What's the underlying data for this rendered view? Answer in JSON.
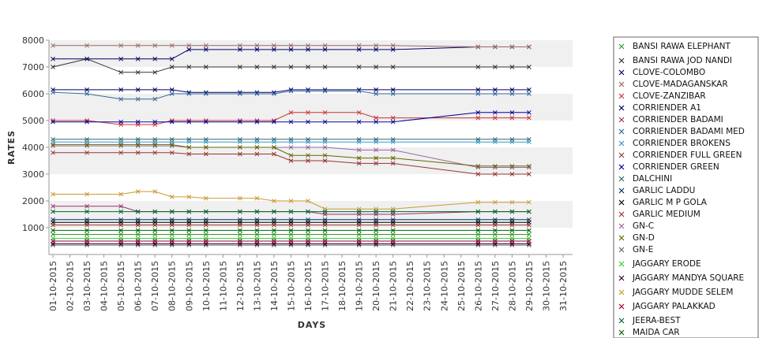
{
  "chart_data": {
    "type": "line",
    "xlabel": "DAYS",
    "ylabel": "RATES",
    "ylim": [
      0,
      8000
    ],
    "yticks": [
      1000,
      2000,
      3000,
      4000,
      5000,
      6000,
      7000,
      8000
    ],
    "grid": "alternating horizontal bands",
    "legend_position": "right",
    "categories": [
      "01-10-2015",
      "02-10-2015",
      "03-10-2015",
      "04-10-2015",
      "05-10-2015",
      "06-10-2015",
      "07-10-2015",
      "08-10-2015",
      "09-10-2015",
      "10-10-2015",
      "11-10-2015",
      "12-10-2015",
      "13-10-2015",
      "14-10-2015",
      "15-10-2015",
      "16-10-2015",
      "17-10-2015",
      "18-10-2015",
      "19-10-2015",
      "20-10-2015",
      "21-10-2015",
      "22-10-2015",
      "23-10-2015",
      "24-10-2015",
      "25-10-2015",
      "26-10-2015",
      "27-10-2015",
      "28-10-2015",
      "29-10-2015",
      "30-10-2015",
      "31-10-2015"
    ],
    "series": [
      {
        "name": "BANSI RAWA ELEPHANT",
        "color": "#339933",
        "values": [
          750,
          null,
          750,
          null,
          750,
          750,
          750,
          750,
          750,
          750,
          null,
          750,
          750,
          750,
          750,
          750,
          750,
          null,
          750,
          750,
          750,
          null,
          null,
          null,
          null,
          750,
          750,
          750,
          750,
          null,
          null
        ]
      },
      {
        "name": "BANSI RAWA JOD NANDI",
        "color": "#333333",
        "values": [
          7000,
          null,
          7300,
          null,
          6800,
          6800,
          6800,
          7000,
          7000,
          7000,
          null,
          7000,
          7000,
          7000,
          7000,
          7000,
          7000,
          null,
          7000,
          7000,
          7000,
          null,
          null,
          null,
          null,
          7000,
          7000,
          7000,
          7000,
          null,
          null
        ]
      },
      {
        "name": "CLOVE-COLOMBO",
        "color": "#000066",
        "values": [
          7300,
          null,
          7300,
          null,
          7300,
          7300,
          7300,
          7300,
          7650,
          7650,
          null,
          7650,
          7650,
          7650,
          7650,
          7650,
          7650,
          null,
          7650,
          7650,
          7650,
          null,
          null,
          null,
          null,
          7750,
          7750,
          7750,
          7750,
          null,
          null
        ]
      },
      {
        "name": "CLOVE-MADAGANSKAR",
        "color": "#996666",
        "values": [
          7800,
          null,
          7800,
          null,
          7800,
          7800,
          7800,
          7800,
          7800,
          7800,
          null,
          7800,
          7800,
          7800,
          7800,
          7800,
          7800,
          null,
          7800,
          7800,
          7800,
          null,
          null,
          null,
          null,
          7750,
          7750,
          7750,
          7750,
          null,
          null
        ]
      },
      {
        "name": "CLOVE-ZANZIBAR",
        "color": "#cc3333",
        "values": [
          5000,
          null,
          5000,
          null,
          4850,
          4850,
          4850,
          5000,
          5000,
          5000,
          null,
          5000,
          5000,
          5000,
          5300,
          5300,
          5300,
          null,
          5300,
          5100,
          5100,
          null,
          null,
          null,
          null,
          5100,
          5100,
          5100,
          5100,
          null,
          null
        ]
      },
      {
        "name": "CORRIENDER A1",
        "color": "#000066",
        "values": [
          6150,
          null,
          6150,
          null,
          6150,
          6150,
          6150,
          6150,
          6050,
          6050,
          null,
          6050,
          6050,
          6050,
          6150,
          6150,
          6150,
          null,
          6150,
          6150,
          6150,
          null,
          null,
          null,
          null,
          6150,
          6150,
          6150,
          6150,
          null,
          null
        ]
      },
      {
        "name": "CORRIENDER BADAMI",
        "color": "#993366",
        "values": [
          1800,
          null,
          1800,
          null,
          1800,
          1600,
          1600,
          1600,
          1600,
          1600,
          null,
          1600,
          1600,
          1600,
          1600,
          1600,
          1500,
          null,
          1500,
          1500,
          1500,
          null,
          null,
          null,
          null,
          1600,
          1600,
          1600,
          1600,
          null,
          null
        ]
      },
      {
        "name": "CORRIENDER BADAMI MED",
        "color": "#336699",
        "values": [
          6050,
          null,
          6000,
          null,
          5800,
          5800,
          5800,
          6000,
          6000,
          6000,
          null,
          6000,
          6000,
          6000,
          6100,
          6100,
          6100,
          null,
          6100,
          6000,
          6000,
          null,
          null,
          null,
          null,
          6000,
          6000,
          6000,
          6000,
          null,
          null
        ]
      },
      {
        "name": "CORRIENDER BROKENS",
        "color": "#3399cc",
        "values": [
          4200,
          null,
          4200,
          null,
          4200,
          4200,
          4200,
          4200,
          4200,
          4200,
          null,
          4200,
          4200,
          4200,
          4200,
          4200,
          4200,
          null,
          4200,
          4200,
          4200,
          null,
          null,
          null,
          null,
          4200,
          4200,
          4200,
          4200,
          null,
          null
        ]
      },
      {
        "name": "CORRIENDER FULL GREEN",
        "color": "#993333",
        "values": [
          3800,
          null,
          3800,
          null,
          3800,
          3800,
          3800,
          3800,
          3750,
          3750,
          null,
          3750,
          3750,
          3750,
          3500,
          3500,
          3500,
          null,
          3400,
          3400,
          3400,
          null,
          null,
          null,
          null,
          3000,
          3000,
          3000,
          3000,
          null,
          null
        ]
      },
      {
        "name": "CORRIENDER GREEN",
        "color": "#000099",
        "values": [
          4950,
          null,
          4950,
          null,
          4950,
          4950,
          4950,
          4950,
          4950,
          4950,
          null,
          4950,
          4950,
          4950,
          4950,
          4950,
          4950,
          null,
          4950,
          4950,
          4950,
          null,
          null,
          null,
          null,
          5300,
          5300,
          5300,
          5300,
          null,
          null
        ]
      },
      {
        "name": "DALCHINI",
        "color": "#336666",
        "values": [
          4300,
          null,
          4300,
          null,
          4300,
          4300,
          4300,
          4300,
          4300,
          4300,
          null,
          4300,
          4300,
          4300,
          4300,
          4300,
          4300,
          null,
          4300,
          4300,
          4300,
          null,
          null,
          null,
          null,
          4300,
          4300,
          4300,
          4300,
          null,
          null
        ]
      },
      {
        "name": "GARLIC LADDU",
        "color": "#003366",
        "values": [
          1300,
          null,
          1300,
          null,
          1300,
          1300,
          1300,
          1300,
          1300,
          1300,
          null,
          1300,
          1300,
          1300,
          1300,
          1300,
          1300,
          null,
          1300,
          1300,
          1300,
          null,
          null,
          null,
          null,
          1300,
          1300,
          1300,
          1300,
          null,
          null
        ]
      },
      {
        "name": "GARLIC M P GOLA",
        "color": "#000000",
        "values": [
          1200,
          null,
          1200,
          null,
          1200,
          1200,
          1200,
          1200,
          1200,
          1200,
          null,
          1200,
          1200,
          1200,
          1200,
          1200,
          1200,
          null,
          1200,
          1200,
          1200,
          null,
          null,
          null,
          null,
          1200,
          1200,
          1200,
          1200,
          null,
          null
        ]
      },
      {
        "name": "GARLIC MEDIUM",
        "color": "#993333",
        "values": [
          1100,
          null,
          1100,
          null,
          1100,
          1100,
          1100,
          1100,
          1100,
          1100,
          null,
          1100,
          1100,
          1100,
          1100,
          1100,
          1100,
          null,
          1100,
          1100,
          1100,
          null,
          null,
          null,
          null,
          1100,
          1100,
          1100,
          1100,
          null,
          null
        ]
      },
      {
        "name": "GN-C",
        "color": "#996699",
        "values": [
          4050,
          null,
          4050,
          null,
          4050,
          4050,
          4050,
          4050,
          4000,
          4000,
          null,
          4000,
          4000,
          4000,
          4000,
          4000,
          4000,
          null,
          3900,
          3900,
          3900,
          null,
          null,
          null,
          null,
          3250,
          3250,
          3250,
          3250,
          null,
          null
        ]
      },
      {
        "name": "GN-D",
        "color": "#666600",
        "values": [
          4100,
          null,
          4100,
          null,
          4100,
          4100,
          4100,
          4100,
          4000,
          4000,
          null,
          4000,
          4000,
          4000,
          3700,
          3700,
          3700,
          null,
          3600,
          3600,
          3600,
          null,
          null,
          null,
          null,
          3300,
          3300,
          3300,
          3300,
          null,
          null
        ]
      },
      {
        "name": "GN-E",
        "color": "#666666",
        "values": [
          350,
          null,
          350,
          null,
          350,
          350,
          350,
          350,
          350,
          350,
          null,
          350,
          350,
          350,
          350,
          350,
          350,
          null,
          350,
          350,
          350,
          null,
          null,
          null,
          null,
          350,
          350,
          350,
          350,
          null,
          null
        ]
      },
      {
        "name": "JAGGARY ERODE",
        "color": "#33cc33",
        "values": [
          600,
          null,
          600,
          null,
          600,
          600,
          600,
          600,
          600,
          600,
          null,
          600,
          600,
          600,
          600,
          600,
          600,
          null,
          600,
          600,
          600,
          null,
          null,
          null,
          null,
          600,
          600,
          600,
          600,
          null,
          null
        ]
      },
      {
        "name": "JAGGARY MANDYA SQUARE",
        "color": "#330033",
        "values": [
          400,
          null,
          400,
          null,
          400,
          400,
          400,
          400,
          400,
          400,
          null,
          400,
          400,
          400,
          400,
          400,
          400,
          null,
          400,
          400,
          400,
          null,
          null,
          null,
          null,
          400,
          400,
          400,
          400,
          null,
          null
        ]
      },
      {
        "name": "JAGGARY MUDDE SELEM",
        "color": "#cc9933",
        "values": [
          2250,
          null,
          2250,
          null,
          2250,
          2350,
          2350,
          2150,
          2150,
          2100,
          null,
          2100,
          2100,
          2000,
          2000,
          2000,
          1700,
          null,
          1700,
          1700,
          1700,
          null,
          null,
          null,
          null,
          1950,
          1950,
          1950,
          1950,
          null,
          null
        ]
      },
      {
        "name": "JAGGARY PALAKKAD",
        "color": "#990033",
        "values": [
          500,
          null,
          500,
          null,
          500,
          500,
          500,
          500,
          500,
          500,
          null,
          500,
          500,
          500,
          500,
          500,
          500,
          null,
          500,
          500,
          500,
          null,
          null,
          null,
          null,
          500,
          500,
          500,
          500,
          null,
          null
        ]
      },
      {
        "name": "JEERA-BEST",
        "color": "#006633",
        "values": [
          1600,
          null,
          1600,
          null,
          1600,
          1600,
          1600,
          1600,
          1600,
          1600,
          null,
          1600,
          1600,
          1600,
          1600,
          1600,
          1600,
          null,
          1600,
          1600,
          1600,
          null,
          null,
          null,
          null,
          1600,
          1600,
          1600,
          1600,
          null,
          null
        ]
      },
      {
        "name": "MAIDA CAR",
        "color": "#006600",
        "values": [
          900,
          null,
          900,
          null,
          900,
          900,
          900,
          900,
          900,
          900,
          null,
          900,
          900,
          900,
          900,
          900,
          900,
          null,
          900,
          900,
          900,
          null,
          null,
          null,
          null,
          900,
          900,
          900,
          900,
          null,
          null
        ]
      }
    ]
  }
}
